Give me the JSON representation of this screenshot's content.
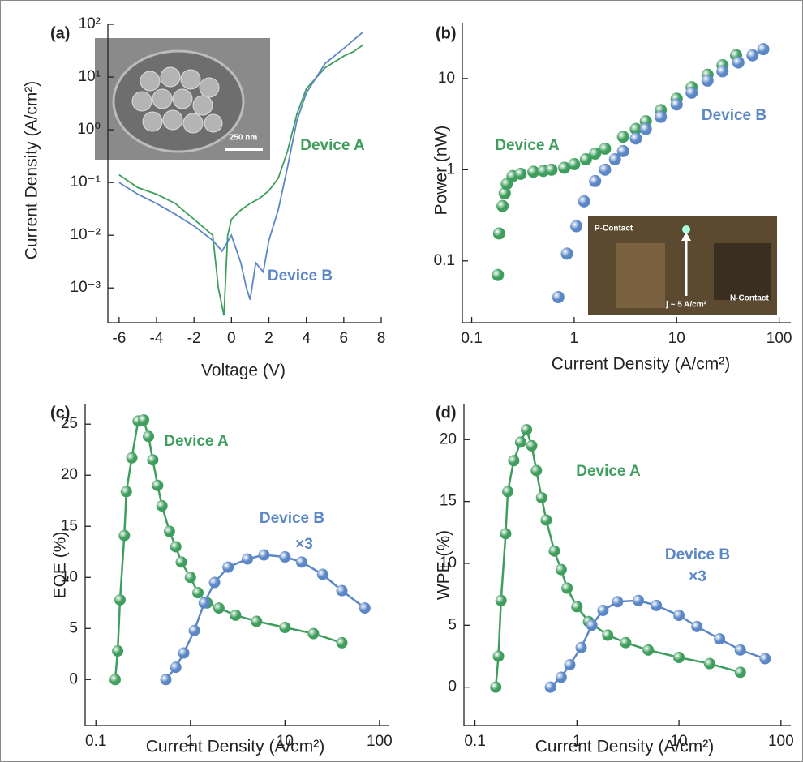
{
  "chart_data": [
    {
      "type": "line",
      "panel": "(a)",
      "xlabel": "Voltage (V)",
      "ylabel": "Current Density (A/cm²)",
      "yscale": "log",
      "xlim": [
        -6.6,
        8
      ],
      "ylim": [
        0.00022,
        100
      ],
      "xticks": [
        -6,
        -4,
        -2,
        0,
        2,
        4,
        6,
        8
      ],
      "yticks": [
        {
          "value": 0.001,
          "label": "10⁻³"
        },
        {
          "value": 0.01,
          "label": "10⁻²"
        },
        {
          "value": 0.1,
          "label": "10⁻¹"
        },
        {
          "value": 1,
          "label": "10⁰"
        },
        {
          "value": 10,
          "label": "10¹"
        },
        {
          "value": 100,
          "label": "10²"
        }
      ],
      "inset_text": [
        "250 nm"
      ],
      "series": [
        {
          "name": "Device A",
          "color": "#3f9e5e",
          "x": [
            -6,
            -5,
            -4,
            -3,
            -2,
            -1,
            -0.7,
            -0.4,
            -0.2,
            0,
            0.5,
            1,
            1.5,
            2,
            2.5,
            3,
            3.5,
            4,
            5,
            6,
            6.5,
            7
          ],
          "values": [
            0.14,
            0.08,
            0.06,
            0.04,
            0.02,
            0.01,
            0.001,
            0.0003,
            0.01,
            0.02,
            0.03,
            0.04,
            0.05,
            0.07,
            0.12,
            0.4,
            2,
            6,
            15,
            25,
            30,
            40
          ]
        },
        {
          "name": "Device B",
          "color": "#5b87c6",
          "x": [
            -6,
            -5,
            -4,
            -3,
            -2,
            -1,
            -0.5,
            0,
            0.5,
            0.8,
            1,
            1.3,
            1.7,
            2,
            2.5,
            3,
            3.5,
            4,
            5,
            6,
            7
          ],
          "values": [
            0.1,
            0.06,
            0.04,
            0.025,
            0.015,
            0.008,
            0.005,
            0.01,
            0.003,
            0.001,
            0.0006,
            0.003,
            0.002,
            0.008,
            0.03,
            0.2,
            1.5,
            5,
            18,
            35,
            70
          ]
        }
      ]
    },
    {
      "type": "scatter",
      "panel": "(b)",
      "xlabel": "Current Density (A/cm²)",
      "ylabel": "Power (nW)",
      "xscale": "log",
      "yscale": "log",
      "xlim": [
        0.081,
        130
      ],
      "ylim": [
        0.021,
        41
      ],
      "xticks": [
        0.1,
        1,
        10,
        100
      ],
      "yticks": [
        0.1,
        1,
        10
      ],
      "inset_text": [
        "P-Contact",
        "N-Contact",
        "j ~ 5 A/cm²"
      ],
      "series": [
        {
          "name": "Device A",
          "color": "#3f9e5e",
          "x": [
            0.18,
            0.185,
            0.2,
            0.21,
            0.22,
            0.25,
            0.3,
            0.4,
            0.5,
            0.6,
            0.8,
            1,
            1.3,
            1.6,
            2,
            3,
            4,
            5,
            7,
            10,
            14,
            20,
            28,
            38
          ],
          "values": [
            0.07,
            0.2,
            0.4,
            0.55,
            0.7,
            0.85,
            0.9,
            0.95,
            0.97,
            1.0,
            1.05,
            1.15,
            1.3,
            1.5,
            1.7,
            2.3,
            2.8,
            3.4,
            4.5,
            6,
            8,
            11,
            14,
            18
          ]
        },
        {
          "name": "Device B",
          "color": "#5b87c6",
          "x": [
            0.7,
            0.85,
            1.05,
            1.25,
            1.6,
            2,
            2.5,
            3,
            4,
            5,
            7,
            10,
            14,
            20,
            28,
            40,
            55,
            70
          ],
          "values": [
            0.04,
            0.12,
            0.24,
            0.45,
            0.75,
            1.0,
            1.3,
            1.6,
            2.2,
            2.8,
            3.8,
            5.2,
            7,
            9.5,
            12,
            15,
            18,
            21
          ]
        }
      ]
    },
    {
      "type": "line",
      "markers": true,
      "panel": "(c)",
      "xlabel": "Current Density (A/cm²)",
      "ylabel": "EQE (%)",
      "xscale": "log",
      "xlim": [
        0.077,
        127
      ],
      "ylim": [
        -4.5,
        27
      ],
      "xticks": [
        0.1,
        1,
        10,
        100
      ],
      "yticks": [
        0,
        5,
        10,
        15,
        20,
        25
      ],
      "annotations": [
        "×3"
      ],
      "series": [
        {
          "name": "Device A",
          "color": "#3f9e5e",
          "x": [
            0.16,
            0.17,
            0.18,
            0.2,
            0.21,
            0.24,
            0.28,
            0.32,
            0.36,
            0.4,
            0.45,
            0.5,
            0.6,
            0.7,
            0.8,
            1,
            1.2,
            1.5,
            2,
            3,
            5,
            10,
            20,
            40
          ],
          "values": [
            0,
            2.8,
            7.8,
            14.1,
            18.4,
            21.7,
            25.3,
            25.4,
            23.8,
            21.5,
            19,
            17,
            14.5,
            13,
            11.5,
            10,
            8.5,
            7.5,
            7,
            6.3,
            5.7,
            5.1,
            4.5,
            3.6
          ]
        },
        {
          "name": "Device B",
          "color": "#5b87c6",
          "x": [
            0.55,
            0.7,
            0.85,
            1.1,
            1.4,
            1.8,
            2.5,
            4,
            6,
            10,
            15,
            25,
            40,
            70
          ],
          "values": [
            0,
            1.2,
            2.6,
            4.8,
            7.5,
            9.5,
            11,
            11.8,
            12.2,
            12,
            11.5,
            10.3,
            8.7,
            7
          ]
        }
      ]
    },
    {
      "type": "line",
      "markers": true,
      "panel": "(d)",
      "xlabel": "Current Density (A/cm²)",
      "ylabel": "WPE (%)",
      "xscale": "log",
      "xlim": [
        0.078,
        125
      ],
      "ylim": [
        -3.1,
        22.9
      ],
      "xticks": [
        0.1,
        1,
        10,
        100
      ],
      "yticks": [
        0,
        5,
        10,
        15,
        20
      ],
      "annotations": [
        "×3"
      ],
      "series": [
        {
          "name": "Device A",
          "color": "#3f9e5e",
          "x": [
            0.16,
            0.17,
            0.18,
            0.2,
            0.21,
            0.24,
            0.28,
            0.32,
            0.36,
            0.4,
            0.45,
            0.5,
            0.6,
            0.7,
            0.8,
            1,
            1.3,
            2,
            3,
            5,
            10,
            20,
            40
          ],
          "values": [
            0,
            2.5,
            7,
            12.4,
            15.8,
            18.3,
            19.8,
            20.8,
            19.5,
            17.5,
            15.3,
            13.5,
            11,
            9.5,
            8,
            6.5,
            5.3,
            4.2,
            3.6,
            3,
            2.4,
            1.9,
            1.2
          ]
        },
        {
          "name": "Device B",
          "color": "#5b87c6",
          "x": [
            0.55,
            0.7,
            0.85,
            1.1,
            1.4,
            1.8,
            2.5,
            4,
            6,
            10,
            15,
            25,
            40,
            70
          ],
          "values": [
            0,
            0.8,
            1.8,
            3.2,
            5,
            6.2,
            6.9,
            7,
            6.6,
            5.8,
            4.9,
            3.9,
            3,
            2.3
          ]
        }
      ]
    }
  ]
}
